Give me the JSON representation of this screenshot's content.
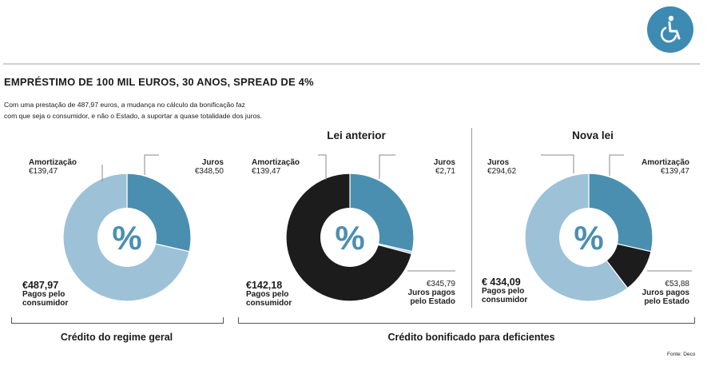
{
  "title": "EMPRÉSTIMO DE 100 MIL EUROS, 30 ANOS, SPREAD DE 4%",
  "description_line1": "Com uma prestação de 487,97 euros, a mudança no cálculo da bonificação faz",
  "description_line2": "com que seja o consumidor, e não o Estado, a suportar a quase totalidade dos juros.",
  "center_symbol": "%",
  "accessibility_icon": "wheelchair-icon",
  "source": "Fonte: Deco",
  "colors": {
    "amortizacao": "#4a8fb0",
    "juros_consumidor": "#9dc2d8",
    "juros_estado": "#1c1c1c",
    "center": "#ffffff",
    "badge": "#3d8bb2"
  },
  "panels": {
    "geral": {
      "header": "",
      "amortizacao": {
        "label": "Amortização",
        "value": "€139,47"
      },
      "juros": {
        "label": "Juros",
        "value": "€348,50"
      },
      "consumidor": {
        "value": "€487,97",
        "line1": "Pagos pelo",
        "line2": "consumidor"
      }
    },
    "anterior": {
      "header": "Lei anterior",
      "amortizacao": {
        "label": "Amortização",
        "value": "€139,47"
      },
      "juros": {
        "label": "Juros",
        "value": "€2,71"
      },
      "consumidor": {
        "value": "€142,18",
        "line1": "Pagos pelo",
        "line2": "consumidor"
      },
      "estado": {
        "value": "€345,79",
        "line1": "Juros pagos",
        "line2": "pelo Estado"
      }
    },
    "nova": {
      "header": "Nova lei",
      "amortizacao": {
        "label": "Amortização",
        "value": "€139,47"
      },
      "juros": {
        "label": "Juros",
        "value": "€294,62"
      },
      "consumidor": {
        "value": "€ 434,09",
        "line1": "Pagos pelo",
        "line2": "consumidor"
      },
      "estado": {
        "value": "€53,88",
        "line1": "Juros pagos",
        "line2": "pelo Estado"
      }
    }
  },
  "brackets": {
    "geral": "Crédito do regime geral",
    "bonificado": "Crédito bonificado para deficientes"
  },
  "chart_data": [
    {
      "type": "pie",
      "categories": [
        "Amortização",
        "Juros"
      ],
      "values": [
        139.47,
        348.5
      ]
    },
    {
      "type": "pie",
      "title": "Lei anterior",
      "categories": [
        "Amortização",
        "Juros",
        "Juros pagos pelo Estado"
      ],
      "values": [
        139.47,
        2.71,
        345.79
      ]
    },
    {
      "type": "pie",
      "title": "Nova lei",
      "categories": [
        "Amortização",
        "Juros pagos pelo Estado",
        "Juros"
      ],
      "values": [
        139.47,
        53.88,
        294.62
      ]
    }
  ]
}
